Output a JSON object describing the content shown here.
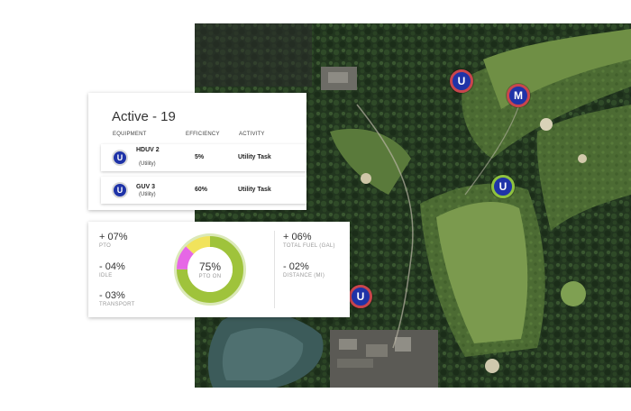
{
  "active_card": {
    "title": "Active - 19",
    "columns": [
      "EQUIPMENT",
      "EFFICIENCY",
      "ACTIVITY"
    ],
    "rows": [
      {
        "badge": "U",
        "name": "HDUV 2",
        "type": "(Utility)",
        "efficiency": "5%",
        "activity": "Utility Task"
      },
      {
        "badge": "U",
        "name": "GUV 3",
        "type": "(Utility)",
        "efficiency": "60%",
        "activity": "Utility Task"
      }
    ]
  },
  "stats_card": {
    "left": [
      {
        "value": "+ 07%",
        "label": "PTO"
      },
      {
        "value": "- 04%",
        "label": "IDLE"
      },
      {
        "value": "- 03%",
        "label": "TRANSPORT"
      }
    ],
    "right": [
      {
        "value": "+ 06%",
        "label": "TOTAL FUEL (gal)"
      },
      {
        "value": "- 02%",
        "label": "DISTANCE (mi)"
      }
    ],
    "donut": {
      "percent": "75%",
      "label": "PTO ON",
      "fraction_on": 0.75,
      "segments": [
        {
          "name": "pto-on",
          "fraction": 0.75,
          "color": "#9fc33b"
        },
        {
          "name": "idle",
          "fraction": 0.12,
          "color": "#e667e6"
        },
        {
          "name": "transport",
          "fraction": 0.13,
          "color": "#f1e35c"
        }
      ]
    }
  },
  "map": {
    "markers": [
      {
        "letter": "U",
        "ring": "red"
      },
      {
        "letter": "M",
        "ring": "red"
      },
      {
        "letter": "U",
        "ring": "green"
      },
      {
        "letter": "U",
        "ring": "red"
      }
    ],
    "colors": {
      "badge_fill": "#1f33a8",
      "ring_red": "#c9454d",
      "ring_green": "#8fc23f"
    }
  }
}
